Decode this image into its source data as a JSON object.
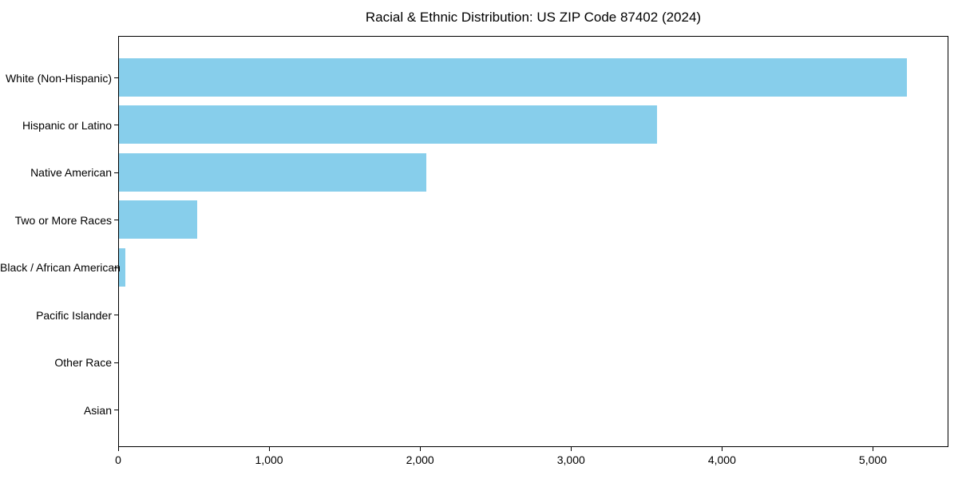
{
  "chart_data": {
    "type": "bar",
    "orientation": "horizontal",
    "title": "Racial & Ethnic Distribution: US ZIP Code 87402 (2024)",
    "categories": [
      "White (Non-Hispanic)",
      "Hispanic or Latino",
      "Native American",
      "Two or More Races",
      "Black / African American",
      "Pacific Islander",
      "Other Race",
      "Asian"
    ],
    "values": [
      5230,
      3570,
      2040,
      520,
      40,
      0,
      0,
      0
    ],
    "xlabel": "",
    "ylabel": "",
    "xlim": [
      0,
      5500
    ],
    "x_ticks": [
      0,
      1000,
      2000,
      3000,
      4000,
      5000
    ],
    "x_tick_labels": [
      "0",
      "1,000",
      "2,000",
      "3,000",
      "4,000",
      "5,000"
    ],
    "bar_color": "#87CEEB",
    "axis_color": "#000000",
    "text_color": "#000000",
    "background_color": "#FFFFFF",
    "grid": false,
    "legend": null
  }
}
